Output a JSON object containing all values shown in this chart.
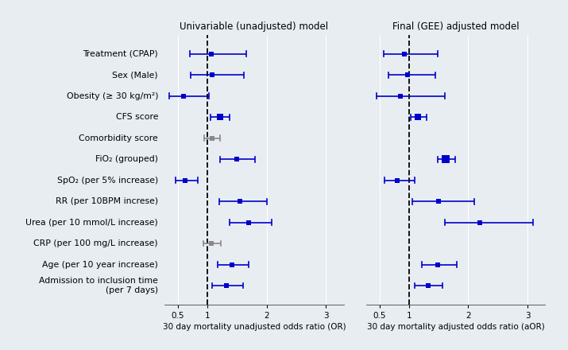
{
  "labels": [
    "Treatment (CPAP)",
    "Sex (Male)",
    "Obesity (≥ 30 kg/m²)",
    "CFS score",
    "Comorbidity score",
    "FiO₂ (grouped)",
    "SpO₂ (per 5% increase)",
    "RR (per 10BPM increse)",
    "Urea (per 10 mmol/L increase)",
    "CRP (per 100 mg/L increase)",
    "Age (per 10 year increase)",
    "Admission to inclusion time\n(per 7 days)"
  ],
  "unadj": {
    "or": [
      1.07,
      1.08,
      0.6,
      1.21,
      1.08,
      1.5,
      0.62,
      1.55,
      1.7,
      1.07,
      1.42,
      1.32
    ],
    "lo": [
      0.7,
      0.72,
      0.35,
      1.05,
      0.95,
      1.22,
      0.46,
      1.2,
      1.38,
      0.93,
      1.18,
      1.08
    ],
    "hi": [
      1.65,
      1.62,
      1.02,
      1.38,
      1.22,
      1.8,
      0.84,
      2.0,
      2.08,
      1.23,
      1.7,
      1.6
    ],
    "color": [
      "#0000cc",
      "#0000cc",
      "#0000cc",
      "#0000cc",
      "#888888",
      "#0000cc",
      "#0000cc",
      "#0000cc",
      "#0000cc",
      "#888888",
      "#0000cc",
      "#0000cc"
    ],
    "ms": [
      5,
      5,
      5,
      11,
      7,
      5,
      5,
      5,
      5,
      7,
      5,
      5
    ]
  },
  "adj": {
    "or": [
      0.92,
      0.97,
      0.85,
      1.15,
      null,
      1.62,
      0.8,
      1.5,
      2.2,
      null,
      1.48,
      1.32
    ],
    "lo": [
      0.57,
      0.65,
      0.45,
      1.03,
      null,
      1.48,
      0.58,
      1.05,
      1.6,
      null,
      1.22,
      1.1
    ],
    "hi": [
      1.48,
      1.45,
      1.6,
      1.3,
      null,
      1.78,
      1.1,
      2.1,
      3.1,
      null,
      1.8,
      1.56
    ],
    "color": [
      "#0000cc",
      "#0000cc",
      "#0000cc",
      "#0000cc",
      null,
      "#0000cc",
      "#0000cc",
      "#0000cc",
      "#0000cc",
      null,
      "#0000cc",
      "#0000cc"
    ],
    "ms": [
      5,
      5,
      5,
      11,
      0,
      14,
      5,
      5,
      5,
      0,
      5,
      5
    ]
  },
  "unadj_title": "Univariable (unadjusted) model",
  "adj_title": "Final (GEE) adjusted model",
  "unadj_xlabel": "30 day mortality unadjusted odds ratio (OR)",
  "adj_xlabel": "30 day mortality adjusted odds ratio (aOR)",
  "ref_line": 1.0,
  "xlim_unadj": [
    0.28,
    3.3
  ],
  "xlim_adj": [
    0.28,
    3.3
  ],
  "xticks": [
    0.5,
    1,
    2,
    3
  ],
  "bg_color": "#e8edf2",
  "plot_bg": "#e8edf2",
  "grid_color": "#ffffff",
  "label_fontsize": 7.8,
  "title_fontsize": 8.5,
  "xlabel_fontsize": 7.5
}
